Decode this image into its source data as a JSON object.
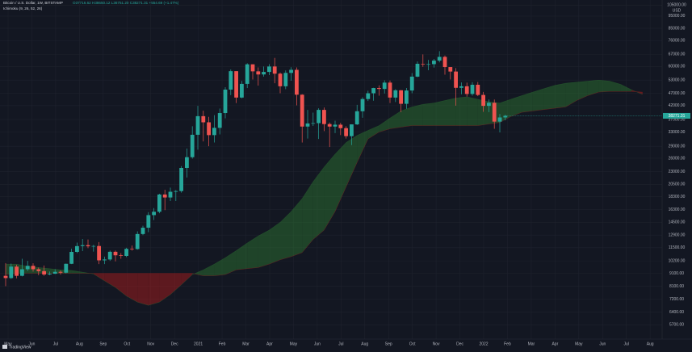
{
  "header": {
    "symbol": "Bitcoin / U.S. Dollar, 1W, BITSTAMP",
    "ohlc": "O37716.62 H38650.12 L36751.20 C38271.31 +554.69 (+1.47%)",
    "indicator": "Ichimoku (9, 26, 52, 26)",
    "currency": "USD",
    "brand": "TradingView"
  },
  "chart_data": {
    "type": "candlestick",
    "log_scale": true,
    "grid": true,
    "up_color": "#26a69a",
    "down_color": "#ef5350",
    "cloud_up_color": "#2e7d32",
    "cloud_down_color": "#b71c1c",
    "open": [
      8900,
      8720,
      9680,
      8900,
      9450,
      9750,
      9450,
      9290,
      9010,
      9070,
      9230,
      9160,
      9930,
      11070,
      11670,
      11770,
      11650,
      11680,
      10250,
      10330,
      11080,
      10730,
      10670,
      11380,
      11360,
      13030,
      13800,
      15480,
      15960,
      18680,
      18180,
      19150,
      19270,
      23800,
      26250,
      32200,
      38150,
      36070,
      32100,
      34300,
      39250,
      48600,
      57500,
      45200,
      51200,
      61200,
      57400,
      55800,
      57100,
      60000,
      56200,
      50100,
      56600,
      58200,
      46400,
      34700,
      35700,
      35800,
      40400,
      35500,
      34700,
      35300,
      34200,
      31800,
      35400,
      39900,
      44600,
      47000,
      49300,
      48900,
      51800,
      45200,
      48300,
      42700,
      48200,
      54700,
      61500,
      61300,
      61300,
      63300,
      65500,
      59700,
      57300,
      49400,
      50100,
      46700,
      50800,
      46300,
      41900,
      43100,
      36300,
      37716.62
    ],
    "high": [
      10000,
      9950,
      9850,
      10400,
      10200,
      9980,
      9600,
      9780,
      9250,
      9450,
      9350,
      9950,
      11400,
      12050,
      12450,
      12400,
      11800,
      12100,
      10600,
      11200,
      11200,
      10950,
      11500,
      11730,
      13350,
      14050,
      15900,
      16500,
      18800,
      19500,
      19900,
      19450,
      24200,
      28400,
      34800,
      41900,
      40100,
      37900,
      38500,
      40900,
      49700,
      58400,
      57500,
      52600,
      61800,
      61200,
      59500,
      60000,
      61300,
      64900,
      56800,
      57900,
      59600,
      59500,
      46600,
      40400,
      39400,
      41000,
      41300,
      36000,
      36600,
      35900,
      34800,
      35400,
      42300,
      45300,
      48100,
      49400,
      50500,
      52900,
      52800,
      48800,
      48400,
      49300,
      56500,
      62800,
      67000,
      63700,
      64300,
      69000,
      66300,
      59300,
      59100,
      51900,
      51800,
      52000,
      52100,
      47600,
      44400,
      44400,
      38900,
      38650.12
    ],
    "low": [
      8100,
      8650,
      8700,
      8850,
      9300,
      9250,
      8950,
      8900,
      8950,
      9050,
      9000,
      9100,
      9900,
      10950,
      11150,
      11450,
      11100,
      9900,
      9900,
      10200,
      10150,
      10400,
      10550,
      11200,
      11300,
      12900,
      13250,
      14800,
      15750,
      16200,
      17600,
      17600,
      19000,
      21800,
      25900,
      28100,
      30300,
      29000,
      30000,
      32300,
      37400,
      46200,
      43000,
      44900,
      49300,
      53300,
      50400,
      54700,
      55500,
      51500,
      47000,
      48800,
      52700,
      42100,
      30000,
      31100,
      34900,
      31000,
      33300,
      28800,
      32700,
      32100,
      31100,
      29300,
      35200,
      37600,
      43800,
      43900,
      46000,
      46900,
      43000,
      43400,
      39600,
      40800,
      47000,
      54400,
      59800,
      58000,
      59400,
      62300,
      55700,
      53300,
      42000,
      46600,
      45600,
      46000,
      45800,
      39700,
      39600,
      34000,
      32900,
      36751.2
    ],
    "close": [
      8720,
      9680,
      8900,
      9450,
      9750,
      9450,
      9290,
      9010,
      9070,
      9230,
      9160,
      9930,
      11070,
      11670,
      11770,
      11650,
      11680,
      10250,
      10330,
      11080,
      10730,
      10670,
      11380,
      11360,
      13030,
      13800,
      15480,
      15960,
      18680,
      18180,
      19150,
      19270,
      23800,
      26250,
      32200,
      38150,
      36070,
      32100,
      34300,
      39250,
      48600,
      57500,
      45200,
      51200,
      61200,
      57400,
      55800,
      57100,
      60000,
      56200,
      50100,
      56600,
      58200,
      46400,
      34700,
      35700,
      35800,
      40400,
      35500,
      34700,
      35300,
      34200,
      31800,
      35400,
      39900,
      44600,
      47000,
      49300,
      48900,
      51800,
      45200,
      48300,
      42700,
      48200,
      54700,
      61500,
      61300,
      61300,
      63300,
      65500,
      59700,
      57300,
      49400,
      50100,
      46700,
      50800,
      46300,
      41900,
      43100,
      36300,
      37700,
      38271.31
    ],
    "cloud": {
      "span_a": [
        9900,
        9900,
        9700,
        9600,
        9500,
        9400,
        9350,
        9200,
        9050,
        8500,
        8000,
        7400,
        7000,
        6800,
        7000,
        7500,
        8200,
        9000,
        9400,
        9900,
        10500,
        11200,
        12000,
        12800,
        13500,
        14500,
        16000,
        18000,
        21000,
        24000,
        27000,
        30000,
        32000,
        33500,
        35000,
        37500,
        40000,
        41500,
        42500,
        43000,
        44000,
        45000,
        45500,
        44500,
        43500,
        43000,
        44500,
        46000,
        47500,
        49000,
        50500,
        51500,
        52000,
        52500,
        53000,
        52500,
        51000,
        48500,
        46500
      ],
      "span_b": [
        9000,
        9100,
        9100,
        9100,
        9100,
        9100,
        9100,
        9100,
        9100,
        9100,
        9100,
        9100,
        9100,
        9100,
        9100,
        9100,
        9100,
        9100,
        8900,
        8900,
        9000,
        9400,
        9500,
        9600,
        9900,
        10300,
        10600,
        11000,
        12400,
        13500,
        16000,
        20000,
        25000,
        31000,
        33000,
        34000,
        34500,
        35000,
        35000,
        35000,
        35000,
        35000,
        35000,
        35000,
        35500,
        36000,
        38000,
        39500,
        40000,
        40500,
        41000,
        41500,
        44000,
        46000,
        47500,
        47800,
        47800,
        47800,
        47500
      ]
    },
    "ylim": [
      5000,
      110000
    ],
    "yticks": [
      {
        "value": 105000,
        "label": "105000.00"
      },
      {
        "value": 95000,
        "label": "95000.00"
      },
      {
        "value": 85000,
        "label": "85000.00"
      },
      {
        "value": 76000,
        "label": "76000.00"
      },
      {
        "value": 67000,
        "label": "67000.00"
      },
      {
        "value": 60000,
        "label": "60000.00"
      },
      {
        "value": 53000,
        "label": "53000.00"
      },
      {
        "value": 47000,
        "label": "47000.00"
      },
      {
        "value": 42000,
        "label": "42000.00"
      },
      {
        "value": 37000,
        "label": "37000.00"
      },
      {
        "value": 33000,
        "label": "33000.00"
      },
      {
        "value": 29000,
        "label": "29000.00"
      },
      {
        "value": 26000,
        "label": "26000.00"
      },
      {
        "value": 23000,
        "label": "23000.00"
      },
      {
        "value": 20500,
        "label": "20500.00"
      },
      {
        "value": 18300,
        "label": "18300.00"
      },
      {
        "value": 16300,
        "label": "16300.00"
      },
      {
        "value": 14500,
        "label": "14500.00"
      },
      {
        "value": 12900,
        "label": "12900.00"
      },
      {
        "value": 11500,
        "label": "11500.00"
      },
      {
        "value": 10200,
        "label": "10200.00"
      },
      {
        "value": 9100,
        "label": "9100.00"
      },
      {
        "value": 8100,
        "label": "8100.00"
      },
      {
        "value": 7200,
        "label": "7200.00"
      },
      {
        "value": 6400,
        "label": "6400.00"
      },
      {
        "value": 5700,
        "label": "5700.00"
      }
    ],
    "xtick_labels": [
      "May",
      "Jun",
      "Jul",
      "Aug",
      "Sep",
      "Oct",
      "Nov",
      "Dec",
      "2021",
      "Feb",
      "Mar",
      "Apr",
      "May",
      "Jun",
      "Jul",
      "Aug",
      "Sep",
      "Oct",
      "Nov",
      "Dec",
      "2022",
      "Feb",
      "Mar",
      "Apr",
      "May",
      "Jun",
      "Jul",
      "Aug"
    ]
  }
}
